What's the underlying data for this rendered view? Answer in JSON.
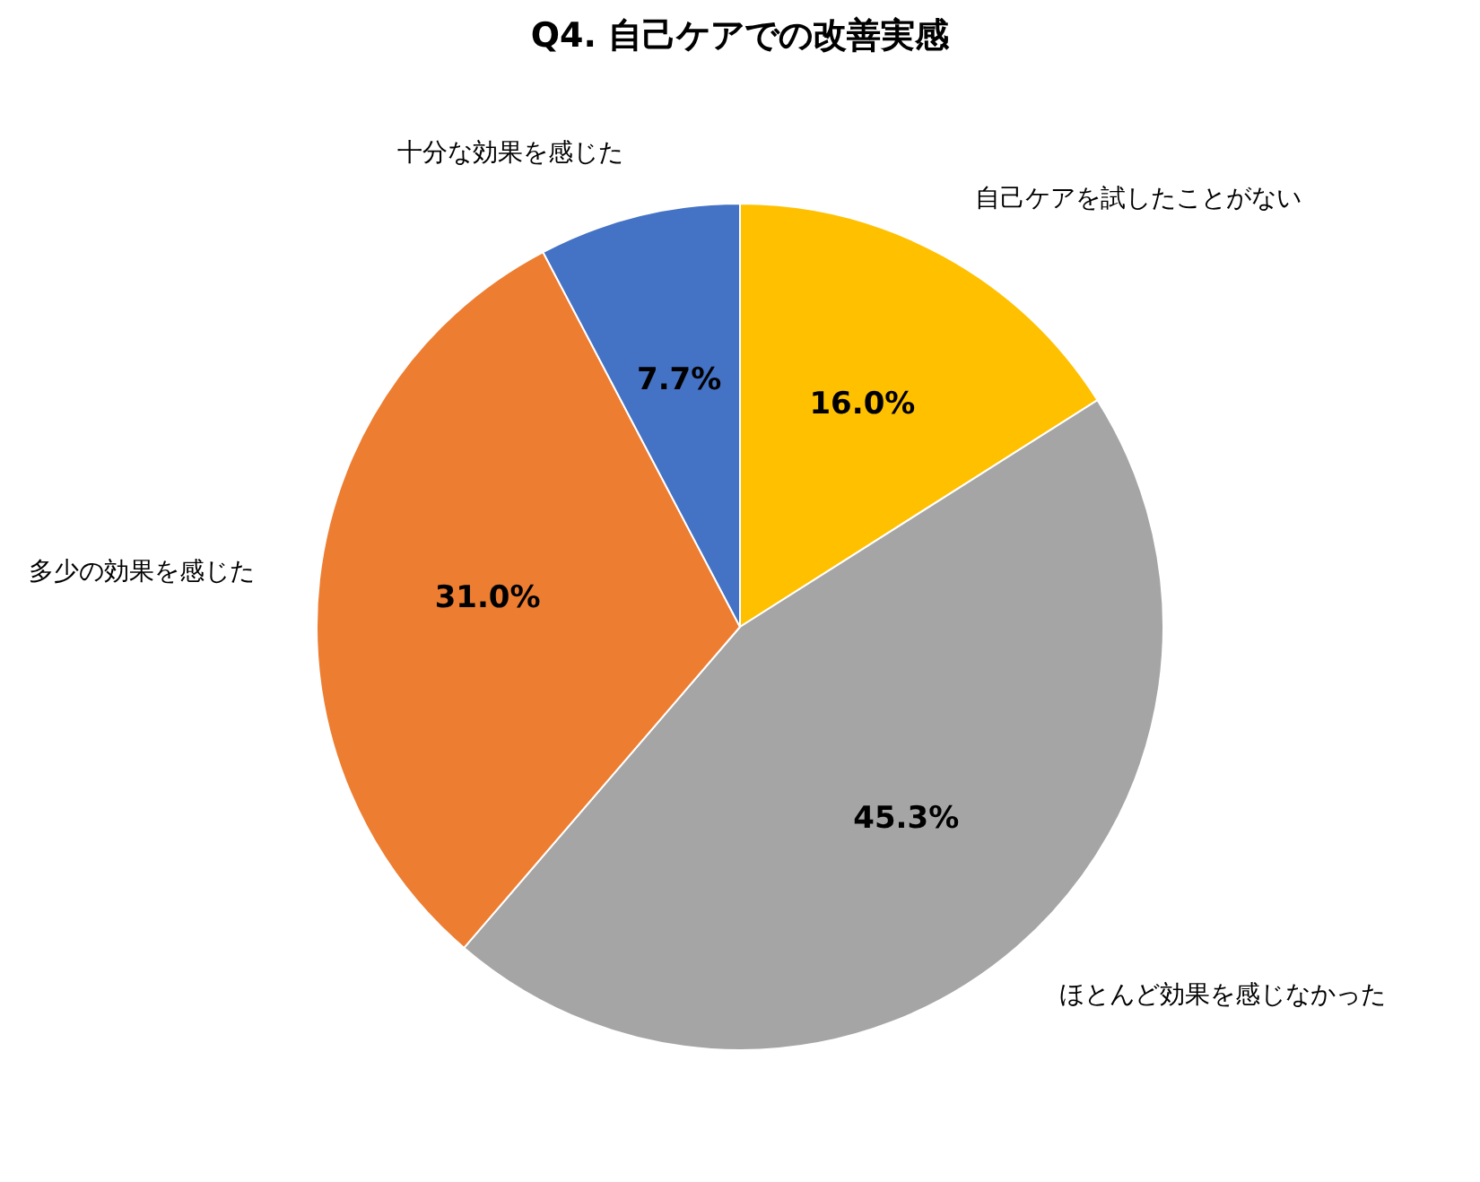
{
  "chart_data": {
    "type": "pie",
    "title": "Q4. 自己ケアでの改善実感",
    "categories": [
      "自己ケアを試したことがない",
      "ほとんど効果を感じなかった",
      "多少の効果を感じた",
      "十分な効果を感じた"
    ],
    "values": [
      16.0,
      45.3,
      31.0,
      7.7
    ],
    "colors": [
      "#ffc000",
      "#a5a5a5",
      "#ed7d31",
      "#4472c4"
    ],
    "value_labels": [
      "16.0%",
      "45.3%",
      "31.0%",
      "7.7%"
    ]
  }
}
